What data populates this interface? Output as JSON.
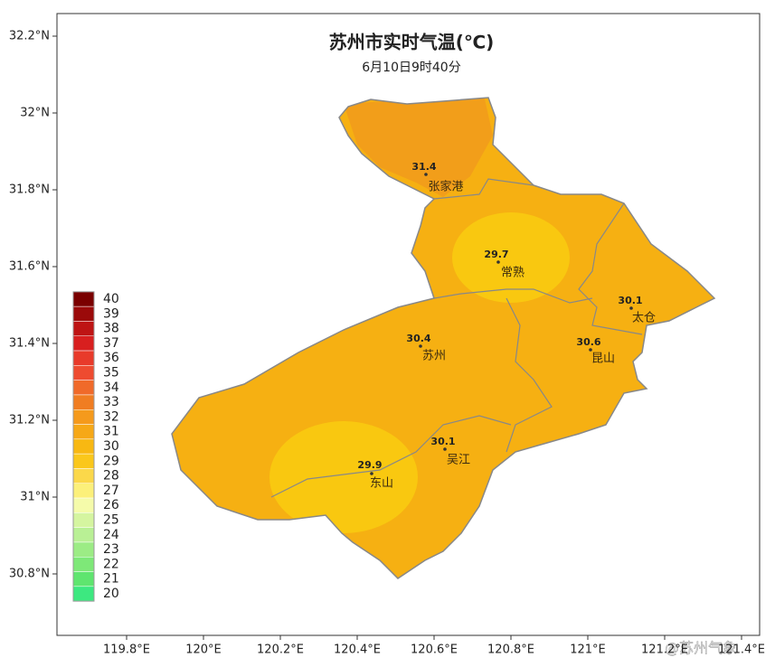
{
  "map": {
    "title": "苏州市实时气温(℃)",
    "subtitle": "6月10日9时40分",
    "lat_ticks": [
      {
        "value": 32.2,
        "label": "32.2°N"
      },
      {
        "value": 32,
        "label": "32°N"
      },
      {
        "value": 31.8,
        "label": "31.8°N"
      },
      {
        "value": 31.6,
        "label": "31.6°N"
      },
      {
        "value": 31.4,
        "label": "31.4°N"
      },
      {
        "value": 31.2,
        "label": "31.2°N"
      },
      {
        "value": 31,
        "label": "31°N"
      },
      {
        "value": 30.8,
        "label": "30.8°N"
      }
    ],
    "lon_ticks": [
      {
        "value": 119.8,
        "label": "119.8°E"
      },
      {
        "value": 120,
        "label": "120°E"
      },
      {
        "value": 120.2,
        "label": "120.2°E"
      },
      {
        "value": 120.4,
        "label": "120.4°E"
      },
      {
        "value": 120.6,
        "label": "120.6°E"
      },
      {
        "value": 120.8,
        "label": "120.8°E"
      },
      {
        "value": 121,
        "label": "121°E"
      },
      {
        "value": 121.2,
        "label": "121.2°E"
      },
      {
        "value": 121.4,
        "label": "121.4°E"
      }
    ],
    "stations": [
      {
        "name": "张家港",
        "value": 31.4
      },
      {
        "name": "常熟",
        "value": 29.7
      },
      {
        "name": "太仓",
        "value": 30.1
      },
      {
        "name": "昆山",
        "value": 30.6
      },
      {
        "name": "苏州",
        "value": 30.4
      },
      {
        "name": "吴江",
        "value": 30.1
      },
      {
        "name": "东山",
        "value": 29.9
      }
    ],
    "legend": [
      {
        "value": 40,
        "color": "#7a0000"
      },
      {
        "value": 39,
        "color": "#9b0a0a"
      },
      {
        "value": 38,
        "color": "#be1414"
      },
      {
        "value": 37,
        "color": "#d81f1f"
      },
      {
        "value": 36,
        "color": "#e83a2a"
      },
      {
        "value": 35,
        "color": "#ee4b30"
      },
      {
        "value": 34,
        "color": "#f06a2a"
      },
      {
        "value": 33,
        "color": "#f07d22"
      },
      {
        "value": 32,
        "color": "#f59a1c"
      },
      {
        "value": 31,
        "color": "#f6a817"
      },
      {
        "value": 30,
        "color": "#f8b812"
      },
      {
        "value": 29,
        "color": "#fac71b"
      },
      {
        "value": 28,
        "color": "#fbd84a"
      },
      {
        "value": 27,
        "color": "#fcf07a"
      },
      {
        "value": 26,
        "color": "#f5fbaa"
      },
      {
        "value": 25,
        "color": "#d5f5a0"
      },
      {
        "value": 24,
        "color": "#b9f095"
      },
      {
        "value": 23,
        "color": "#9cec85"
      },
      {
        "value": 22,
        "color": "#7ee878"
      },
      {
        "value": 21,
        "color": "#5fe56f"
      },
      {
        "value": 20,
        "color": "#3de880"
      }
    ],
    "watermark": "@苏州气象"
  }
}
